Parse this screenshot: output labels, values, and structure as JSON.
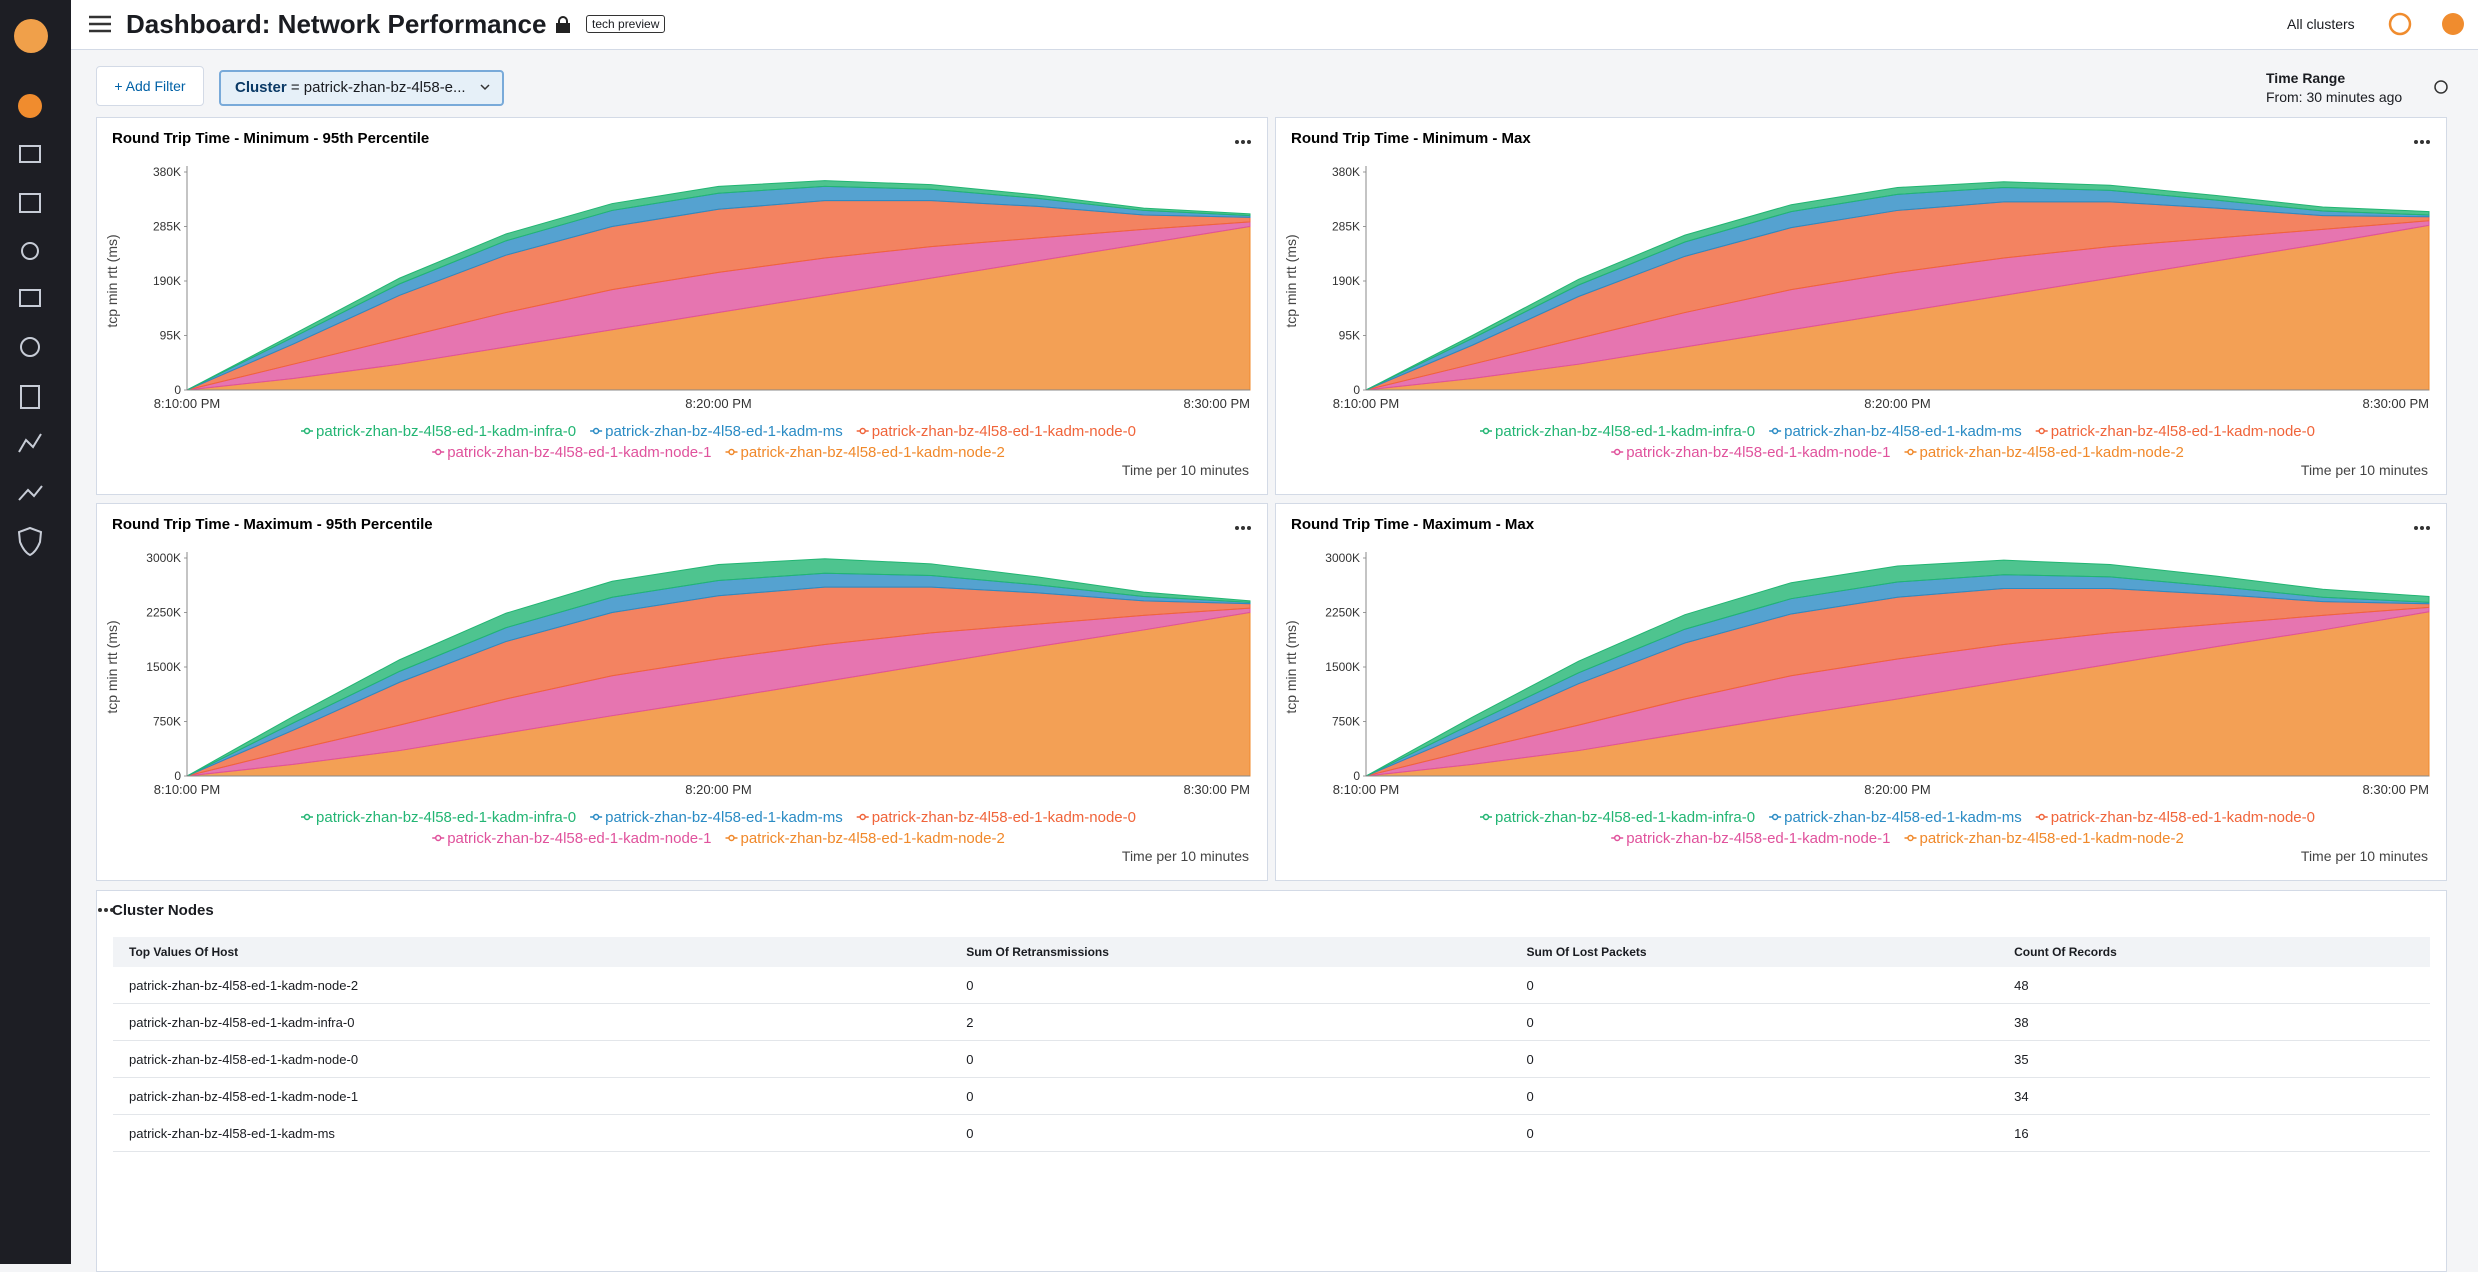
{
  "header": {
    "title": "Dashboard: Network Performance",
    "badge": "tech preview",
    "cluster_scope": "All clusters"
  },
  "filters": {
    "add_button": "+ Add Filter",
    "items": [
      {
        "field": "Cluster",
        "operator": "=",
        "value": "patrick-zhan-bz-4l58-e..."
      }
    ]
  },
  "time_range": {
    "label": "Time Range",
    "value": "From: 30 minutes ago"
  },
  "chart_data": [
    {
      "type": "stacked-area",
      "title": "Round Trip Time - Minimum - 95th Percentile",
      "ylabel": "tcp min rtt (ms)",
      "xlabel": "Time per 10 minutes",
      "categories": [
        "8:10:00 PM",
        null,
        null,
        null,
        null,
        "8:20:00 PM",
        null,
        null,
        null,
        null,
        "8:30:00 PM"
      ],
      "ylim": [
        0,
        380000
      ],
      "yticks": [
        0,
        {
          "value": 95000,
          "label": "95K"
        },
        {
          "value": 190000,
          "label": "190K"
        },
        {
          "value": 285000,
          "label": "285K"
        },
        {
          "value": 380000,
          "label": "380K"
        }
      ],
      "series": [
        {
          "name": "patrick-zhan-bz-4l58-ed-1-kadm-infra-0",
          "color": "#22b573",
          "values": [
            0,
            5000,
            10000,
            12000,
            12000,
            12000,
            10000,
            8000,
            6000,
            4000,
            3000
          ]
        },
        {
          "name": "patrick-zhan-bz-4l58-ed-1-kadm-ms",
          "color": "#2a8bc4",
          "values": [
            0,
            12000,
            20000,
            25000,
            28000,
            28000,
            25000,
            20000,
            14000,
            8000,
            3000
          ]
        },
        {
          "name": "patrick-zhan-bz-4l58-ed-1-kadm-node-0",
          "color": "#f0643a",
          "values": [
            0,
            35000,
            75000,
            100000,
            110000,
            110000,
            100000,
            80000,
            55000,
            25000,
            8000
          ]
        },
        {
          "name": "patrick-zhan-bz-4l58-ed-1-kadm-node-1",
          "color": "#e0529c",
          "values": [
            0,
            25000,
            45000,
            60000,
            70000,
            70000,
            65000,
            55000,
            40000,
            25000,
            8000
          ]
        },
        {
          "name": "patrick-zhan-bz-4l58-ed-1-kadm-node-2",
          "color": "#f0882a",
          "values": [
            0,
            20000,
            45000,
            75000,
            105000,
            135000,
            165000,
            195000,
            225000,
            255000,
            285000
          ]
        }
      ]
    },
    {
      "type": "stacked-area",
      "title": "Round Trip Time - Minimum - Max",
      "ylabel": "tcp min rtt (ms)",
      "xlabel": "Time per 10 minutes",
      "categories": [
        "8:10:00 PM",
        null,
        null,
        null,
        null,
        "8:20:00 PM",
        null,
        null,
        null,
        null,
        "8:30:00 PM"
      ],
      "ylim": [
        0,
        380000
      ],
      "yticks": [
        0,
        {
          "value": 95000,
          "label": "95K"
        },
        {
          "value": 190000,
          "label": "190K"
        },
        {
          "value": 285000,
          "label": "285K"
        },
        {
          "value": 380000,
          "label": "380K"
        }
      ],
      "series": [
        {
          "name": "patrick-zhan-bz-4l58-ed-1-kadm-infra-0",
          "color": "#22b573",
          "values": [
            0,
            5000,
            10000,
            12000,
            12000,
            12000,
            10000,
            9000,
            8000,
            7000,
            6000
          ]
        },
        {
          "name": "patrick-zhan-bz-4l58-ed-1-kadm-ms",
          "color": "#2a8bc4",
          "values": [
            0,
            12000,
            20000,
            25000,
            28000,
            28000,
            25000,
            20000,
            14000,
            8000,
            3000
          ]
        },
        {
          "name": "patrick-zhan-bz-4l58-ed-1-kadm-node-0",
          "color": "#f0643a",
          "values": [
            0,
            33000,
            73000,
            98000,
            108000,
            108000,
            98000,
            78000,
            52000,
            24000,
            7000
          ]
        },
        {
          "name": "patrick-zhan-bz-4l58-ed-1-kadm-node-1",
          "color": "#e0529c",
          "values": [
            0,
            25000,
            45000,
            60000,
            70000,
            70000,
            65000,
            55000,
            40000,
            25000,
            8000
          ]
        },
        {
          "name": "patrick-zhan-bz-4l58-ed-1-kadm-node-2",
          "color": "#f0882a",
          "values": [
            0,
            20000,
            45000,
            75000,
            105000,
            135000,
            165000,
            195000,
            225000,
            255000,
            287000
          ]
        }
      ]
    },
    {
      "type": "stacked-area",
      "title": "Round Trip Time - Maximum - 95th Percentile",
      "ylabel": "tcp min rtt (ms)",
      "xlabel": "Time per 10 minutes",
      "categories": [
        "8:10:00 PM",
        null,
        null,
        null,
        null,
        "8:20:00 PM",
        null,
        null,
        null,
        null,
        "8:30:00 PM"
      ],
      "ylim": [
        0,
        3000000
      ],
      "yticks": [
        0,
        {
          "value": 750000,
          "label": "750K"
        },
        {
          "value": 1500000,
          "label": "1500K"
        },
        {
          "value": 2250000,
          "label": "2250K"
        },
        {
          "value": 3000000,
          "label": "3000K"
        }
      ],
      "series": [
        {
          "name": "patrick-zhan-bz-4l58-ed-1-kadm-infra-0",
          "color": "#22b573",
          "values": [
            0,
            90000,
            160000,
            200000,
            220000,
            220000,
            200000,
            160000,
            110000,
            60000,
            20000
          ]
        },
        {
          "name": "patrick-zhan-bz-4l58-ed-1-kadm-ms",
          "color": "#2a8bc4",
          "values": [
            0,
            100000,
            150000,
            190000,
            210000,
            210000,
            190000,
            160000,
            110000,
            60000,
            20000
          ]
        },
        {
          "name": "patrick-zhan-bz-4l58-ed-1-kadm-node-0",
          "color": "#f0643a",
          "values": [
            0,
            270000,
            590000,
            790000,
            870000,
            870000,
            790000,
            630000,
            430000,
            200000,
            60000
          ]
        },
        {
          "name": "patrick-zhan-bz-4l58-ed-1-kadm-node-1",
          "color": "#e0529c",
          "values": [
            0,
            200000,
            350000,
            470000,
            550000,
            550000,
            510000,
            430000,
            310000,
            200000,
            60000
          ]
        },
        {
          "name": "patrick-zhan-bz-4l58-ed-1-kadm-node-2",
          "color": "#f0882a",
          "values": [
            0,
            160000,
            350000,
            590000,
            830000,
            1060000,
            1300000,
            1540000,
            1780000,
            2010000,
            2250000
          ]
        }
      ]
    },
    {
      "type": "stacked-area",
      "title": "Round Trip Time - Maximum - Max",
      "ylabel": "tcp min rtt (ms)",
      "xlabel": "Time per 10 minutes",
      "categories": [
        "8:10:00 PM",
        null,
        null,
        null,
        null,
        "8:20:00 PM",
        null,
        null,
        null,
        null,
        "8:30:00 PM"
      ],
      "ylim": [
        0,
        3000000
      ],
      "yticks": [
        0,
        {
          "value": 750000,
          "label": "750K"
        },
        {
          "value": 1500000,
          "label": "1500K"
        },
        {
          "value": 2250000,
          "label": "2250K"
        },
        {
          "value": 3000000,
          "label": "3000K"
        }
      ],
      "series": [
        {
          "name": "patrick-zhan-bz-4l58-ed-1-kadm-infra-0",
          "color": "#22b573",
          "values": [
            0,
            90000,
            160000,
            200000,
            220000,
            220000,
            200000,
            170000,
            140000,
            110000,
            80000
          ]
        },
        {
          "name": "patrick-zhan-bz-4l58-ed-1-kadm-ms",
          "color": "#2a8bc4",
          "values": [
            0,
            100000,
            150000,
            190000,
            210000,
            210000,
            190000,
            160000,
            110000,
            60000,
            20000
          ]
        },
        {
          "name": "patrick-zhan-bz-4l58-ed-1-kadm-node-0",
          "color": "#f0643a",
          "values": [
            0,
            260000,
            570000,
            770000,
            850000,
            850000,
            770000,
            610000,
            410000,
            190000,
            50000
          ]
        },
        {
          "name": "patrick-zhan-bz-4l58-ed-1-kadm-node-1",
          "color": "#e0529c",
          "values": [
            0,
            200000,
            350000,
            470000,
            550000,
            550000,
            510000,
            430000,
            310000,
            200000,
            60000
          ]
        },
        {
          "name": "patrick-zhan-bz-4l58-ed-1-kadm-node-2",
          "color": "#f0882a",
          "values": [
            0,
            160000,
            350000,
            590000,
            830000,
            1060000,
            1300000,
            1540000,
            1780000,
            2010000,
            2260000
          ]
        }
      ]
    }
  ],
  "table": {
    "title": "Cluster Nodes",
    "columns": [
      "Top Values Of Host",
      "Sum Of Retransmissions",
      "Sum Of Lost Packets",
      "Count Of Records"
    ],
    "rows": [
      [
        "patrick-zhan-bz-4l58-ed-1-kadm-node-2",
        "0",
        "0",
        "48"
      ],
      [
        "patrick-zhan-bz-4l58-ed-1-kadm-infra-0",
        "2",
        "0",
        "38"
      ],
      [
        "patrick-zhan-bz-4l58-ed-1-kadm-node-0",
        "0",
        "0",
        "35"
      ],
      [
        "patrick-zhan-bz-4l58-ed-1-kadm-node-1",
        "0",
        "0",
        "34"
      ],
      [
        "patrick-zhan-bz-4l58-ed-1-kadm-ms",
        "0",
        "0",
        "16"
      ]
    ]
  }
}
